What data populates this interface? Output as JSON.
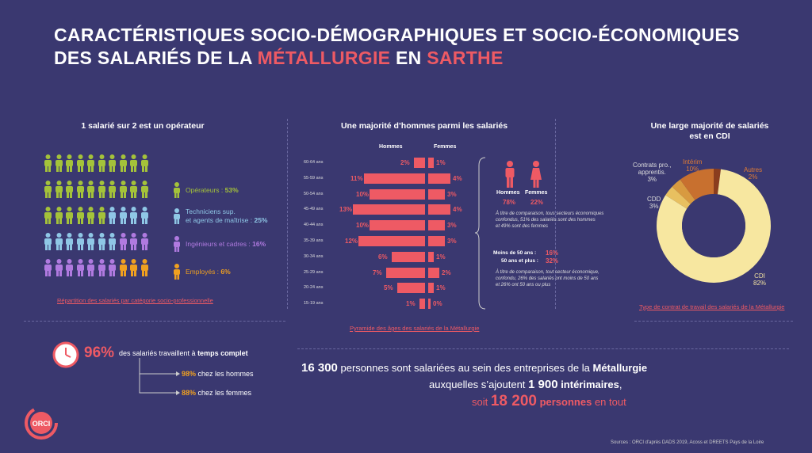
{
  "title": {
    "line1": "CARACTÉRISTIQUES SOCIO-DÉMOGRAPHIQUES ET SOCIO-ÉCONOMIQUES",
    "line2_a": "DES SALARIÉS DE LA ",
    "line2_hl1": "MÉTALLURGIE",
    "line2_b": " EN ",
    "line2_hl2": "SARTHE"
  },
  "colors": {
    "bg": "#3a3870",
    "accent": "#ee5a64",
    "operateurs": "#a4c23a",
    "techniciens": "#8fc7e6",
    "ingenieurs": "#b07ae0",
    "employes": "#f0a020"
  },
  "csp": {
    "title": "1 salarié sur 2 est un opérateur",
    "legend": [
      {
        "label": "Opérateurs : ",
        "value": "53%"
      },
      {
        "label": "Techniciens sup.",
        "label2": "et agents de maîtrise : ",
        "value": "25%"
      },
      {
        "label": "Ingénieurs et cadres : ",
        "value": "16%"
      },
      {
        "label": "Employés : ",
        "value": "6%"
      }
    ],
    "link": "Répartition des salariés par catégorie socio-professionnelle"
  },
  "pyramid": {
    "title": "Une majorité d’hommes parmi les salariés",
    "men_label": "Hommes",
    "women_label": "Femmes",
    "link": "Pyramide des âges des salariés de la Métallurgie",
    "men_total_label": "Hommes",
    "men_total": "78%",
    "women_total_label": "Femmes",
    "women_total": "22%",
    "note1": [
      "À titre de comparaison, tous secteurs économiques",
      "confondus, 51% des salariés sont des hommes",
      "et 49% sont des femmes"
    ],
    "under50_label": "Moins de 50 ans :",
    "under50_value": "16%",
    "over50_label": "50 ans et plus :",
    "over50_value": "32%",
    "note2": [
      "À titre de comparaison, tout secteur économique,",
      "confondu, 26% des salariés ont moins de 50 ans",
      "et 26% ont 50 ans ou plus"
    ]
  },
  "contract": {
    "title1": "Une large majorité de salariés",
    "title2": "est en CDI",
    "labels": {
      "cdi": "CDI",
      "cdi_v": "82%",
      "cdd": "CDD",
      "cdd_v": "3%",
      "pro": "Contrats pro.,",
      "pro2": "apprentis.",
      "pro_v": "3%",
      "interim": "Intérim",
      "interim_v": "10%",
      "autres": "Autres",
      "autres_v": "2%"
    },
    "link": "Type de contrat de travail des salariés de la Métallurgie"
  },
  "fulltime": {
    "pct": "96%",
    "text_a": "des salariés travaillent à ",
    "text_b": "temps complet",
    "men_v": "98%",
    "men_t": " chez les hommes",
    "women_v": "88%",
    "women_t": " chez les femmes"
  },
  "summary": {
    "n1": "16 300",
    "t1a": " personnes sont salariées au sein des entreprises de la ",
    "t1b": "Métallurgie",
    "t2a": "auxquelles s’ajoutent ",
    "n2": "1 900",
    "t2b": " intérimaires",
    "t2c": ",",
    "t3a": "soit ",
    "n3": "18 200",
    "t3b": " personnes",
    "t3c": " en tout"
  },
  "logo": "ORCI",
  "sources": "Sources : ORCI d'après DADS 2019, Acoss et DREETS Pays de la Loire",
  "chart_data": [
    {
      "type": "bar",
      "title": "Une majorité d’hommes parmi les salariés",
      "categories": [
        "60-64 ans",
        "55-59 ans",
        "50-54 ans",
        "45-49 ans",
        "40-44 ans",
        "35-39 ans",
        "30-34 ans",
        "25-29 ans",
        "20-24 ans",
        "15-19 ans"
      ],
      "series": [
        {
          "name": "Hommes",
          "values": [
            2,
            11,
            10,
            13,
            10,
            12,
            6,
            7,
            5,
            1
          ]
        },
        {
          "name": "Femmes",
          "values": [
            1,
            4,
            3,
            4,
            3,
            3,
            1,
            2,
            1,
            0
          ]
        }
      ]
    },
    {
      "type": "pie",
      "title": "Une large majorité de salariés est en CDI",
      "categories": [
        "CDI",
        "CDD",
        "Contrats pro., apprentis.",
        "Intérim",
        "Autres"
      ],
      "values": [
        82,
        3,
        3,
        10,
        2
      ]
    },
    {
      "type": "bar",
      "title": "1 salarié sur 2 est un opérateur",
      "categories": [
        "Opérateurs",
        "Techniciens sup. et agents de maîtrise",
        "Ingénieurs et cadres",
        "Employés"
      ],
      "values": [
        53,
        25,
        16,
        6
      ]
    }
  ]
}
